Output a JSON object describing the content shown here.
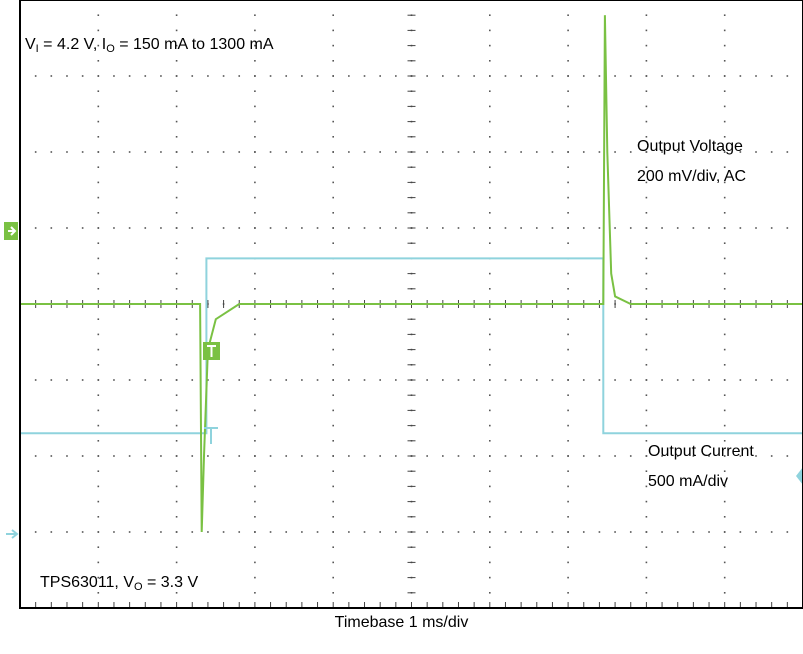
{
  "chart_data": {
    "type": "line",
    "title": "",
    "xlabel": "Timebase 1 ms/div",
    "x_unit": "ms",
    "xlim": [
      0,
      10
    ],
    "grid": true,
    "grid_divisions": {
      "x": 10,
      "y": 8
    },
    "annotations": {
      "conditions": {
        "v_label": "V",
        "v_sub": "I",
        "v_text": " = 4.2 V, ",
        "i_label": "I",
        "i_sub": "O",
        "i_text": " = 150 mA to 1300 mA"
      },
      "device": {
        "name_text": "TPS63011, ",
        "v_label": "V",
        "v_sub": "O",
        "v_text": " = 3.3 V"
      }
    },
    "series": [
      {
        "name_lines": [
          "Output Voltage",
          "200 mV/div, AC"
        ],
        "scale": "200 mV/div",
        "coupling": "AC",
        "unit": "mV",
        "color": "#7ac143",
        "ylim": [
          -800,
          800
        ],
        "x": [
          0,
          2.3,
          2.32,
          2.35,
          2.4,
          2.5,
          2.8,
          7.45,
          7.47,
          7.5,
          7.55,
          7.6,
          7.8,
          10
        ],
        "y": [
          0,
          0,
          -600,
          -400,
          -120,
          -40,
          0,
          0,
          760,
          400,
          80,
          20,
          0,
          0
        ]
      },
      {
        "name_lines": [
          "Output Current",
          "500 mA/div"
        ],
        "scale": "500 mA/div",
        "unit": "mA",
        "color": "#8fd3dd",
        "ylim": [
          -1000,
          3000
        ],
        "x": [
          0,
          2.38,
          2.38,
          7.45,
          7.45,
          10
        ],
        "y": [
          150,
          150,
          1300,
          1300,
          150,
          150
        ]
      }
    ]
  }
}
